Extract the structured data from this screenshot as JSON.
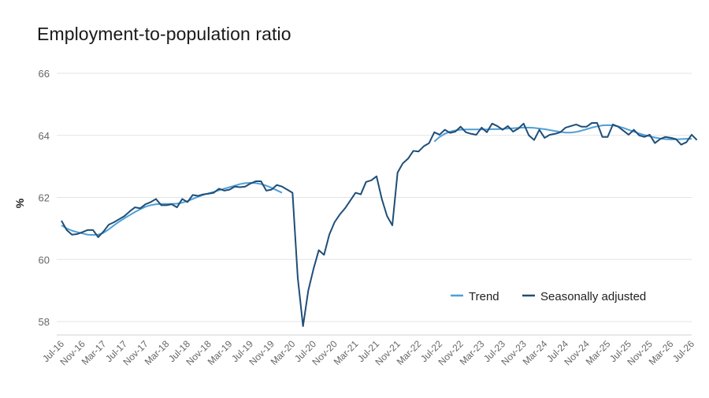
{
  "chart_data": {
    "type": "line",
    "title": "Employment-to-population ratio",
    "xlabel": "",
    "ylabel": "%",
    "ylim": [
      57.5,
      66
    ],
    "yticks": [
      58,
      60,
      62,
      64,
      66
    ],
    "grid": true,
    "legend_position": "bottom-right",
    "start_month": "Jul-16",
    "x_tick_labels": [
      "Jul-16",
      "Nov-16",
      "Mar-17",
      "Jul-17",
      "Nov-17",
      "Mar-18",
      "Jul-18",
      "Nov-18",
      "Mar-19",
      "Jul-19",
      "Nov-19",
      "Mar-20",
      "Jul-20",
      "Nov-20",
      "Mar-21",
      "Jul-21",
      "Nov-21",
      "Mar-22",
      "Jul-22",
      "Nov-22",
      "Mar-23",
      "Jul-23",
      "Nov-23",
      "Mar-24",
      "Jul-24",
      "Nov-24",
      "Mar-25",
      "Jul-25",
      "Nov-25",
      "Mar-26",
      "Jul-26"
    ],
    "series": [
      {
        "name": "Trend",
        "color": "#4e9fd6",
        "segments": [
          {
            "start_month": "Jul-16",
            "values": [
              61.1,
              61.0,
              60.93,
              60.88,
              60.84,
              60.8,
              60.79,
              60.8,
              60.86,
              60.97,
              61.1,
              61.22,
              61.33,
              61.43,
              61.53,
              61.62,
              61.7,
              61.75,
              61.78,
              61.79,
              61.79,
              61.79,
              61.8,
              61.83,
              61.88,
              61.95,
              62.02,
              62.08,
              62.13,
              62.18,
              62.23,
              62.28,
              62.33,
              62.38,
              62.43,
              62.46,
              62.47,
              62.46,
              62.43,
              62.38,
              62.31,
              62.23,
              62.15
            ]
          },
          {
            "start_month": "Jun-22",
            "values": [
              63.8,
              63.95,
              64.05,
              64.12,
              64.16,
              64.18,
              64.19,
              64.19,
              64.19,
              64.19,
              64.19,
              64.2,
              64.2,
              64.21,
              64.22,
              64.23,
              64.24,
              64.25,
              64.25,
              64.24,
              64.22,
              64.2,
              64.17,
              64.14,
              64.11,
              64.09,
              64.09,
              64.11,
              64.15,
              64.2,
              64.25,
              64.29,
              64.32,
              64.33,
              64.32,
              64.29,
              64.24,
              64.18,
              64.12,
              64.06,
              64.01,
              63.97,
              63.93,
              63.9,
              63.88,
              63.87,
              63.87,
              63.88,
              63.89,
              63.89
            ]
          }
        ]
      },
      {
        "name": "Seasonally adjusted",
        "color": "#1f4e79",
        "start_month": "Jul-16",
        "values": [
          61.25,
          60.95,
          60.8,
          60.82,
          60.88,
          60.95,
          60.95,
          60.72,
          60.9,
          61.12,
          61.2,
          61.3,
          61.4,
          61.55,
          61.68,
          61.65,
          61.78,
          61.85,
          61.95,
          61.75,
          61.75,
          61.78,
          61.68,
          61.95,
          61.85,
          62.08,
          62.05,
          62.1,
          62.12,
          62.15,
          62.28,
          62.22,
          62.25,
          62.35,
          62.33,
          62.35,
          62.45,
          62.52,
          62.52,
          62.22,
          62.25,
          62.4,
          62.35,
          62.25,
          62.15,
          59.4,
          57.85,
          59.0,
          59.7,
          60.3,
          60.15,
          60.8,
          61.2,
          61.45,
          61.65,
          61.9,
          62.15,
          62.1,
          62.5,
          62.55,
          62.68,
          61.95,
          61.4,
          61.1,
          62.8,
          63.1,
          63.25,
          63.5,
          63.48,
          63.65,
          63.75,
          64.1,
          64.02,
          64.18,
          64.08,
          64.12,
          64.28,
          64.1,
          64.05,
          64.02,
          64.25,
          64.1,
          64.38,
          64.3,
          64.18,
          64.3,
          64.12,
          64.22,
          64.38,
          64.0,
          63.85,
          64.18,
          63.92,
          64.02,
          64.05,
          64.1,
          64.25,
          64.3,
          64.35,
          64.28,
          64.28,
          64.4,
          64.4,
          63.95,
          63.95,
          64.35,
          64.28,
          64.15,
          64.02,
          64.18,
          64.0,
          63.95,
          64.02,
          63.75,
          63.88,
          63.95,
          63.92,
          63.88,
          63.7,
          63.78,
          64.02,
          63.85
        ]
      }
    ]
  }
}
